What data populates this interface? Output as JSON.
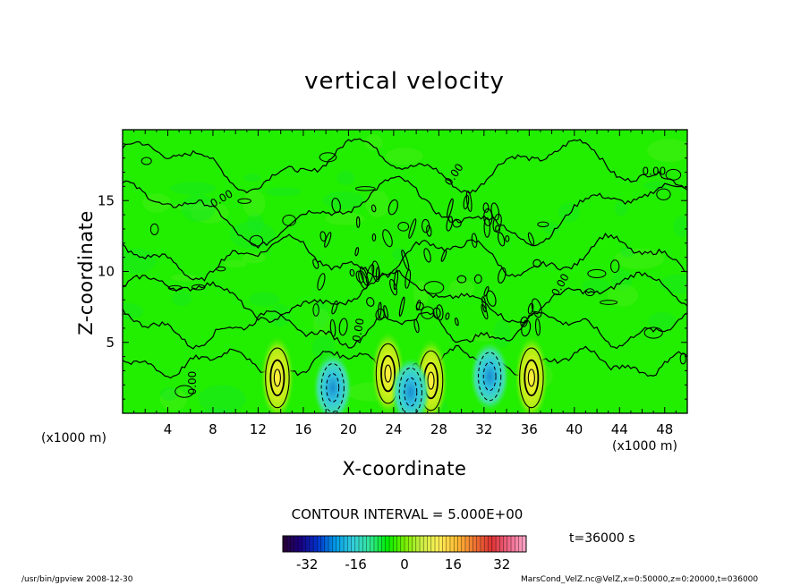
{
  "chart_data": {
    "type": "heatmap",
    "title": "vertical velocity",
    "xlabel": "X-coordinate",
    "ylabel": "Z-coordinate",
    "x_unit_left": "(x1000 m)",
    "x_unit_right": "(x1000 m)",
    "xlim": [
      0,
      50
    ],
    "ylim": [
      0,
      20
    ],
    "x_ticks": [
      4,
      8,
      12,
      16,
      20,
      24,
      28,
      32,
      36,
      40,
      44,
      48
    ],
    "y_ticks": [
      5,
      10,
      15
    ],
    "contour_interval_label": "CONTOUR INTERVAL = 5.000E+00",
    "contour_label": "0.00",
    "time_label": "t=36000 s",
    "colorbar": {
      "range": [
        -40,
        40
      ],
      "ticks": [
        -32,
        -16,
        0,
        16,
        32
      ],
      "colors": [
        "#2a0033",
        "#1a0080",
        "#0033cc",
        "#0099e6",
        "#33ccdd",
        "#33e699",
        "#00ee00",
        "#77ee00",
        "#ccee44",
        "#ffee55",
        "#ffbb33",
        "#ee7733",
        "#dd3333",
        "#ee6688",
        "#ffaacc"
      ]
    },
    "updrafts": [
      {
        "x": 13.7,
        "z": 2.5,
        "peak": 14
      },
      {
        "x": 23.5,
        "z": 2.8,
        "peak": 16
      },
      {
        "x": 27.3,
        "z": 2.3,
        "peak": 13
      },
      {
        "x": 36.2,
        "z": 2.5,
        "peak": 15
      }
    ],
    "downdrafts": [
      {
        "x": 18.6,
        "z": 1.8,
        "peak": -12
      },
      {
        "x": 32.5,
        "z": 2.6,
        "peak": -11
      },
      {
        "x": 25.5,
        "z": 1.5,
        "peak": -5
      }
    ]
  },
  "footer": {
    "left": "/usr/bin/gpview  2008-12-30",
    "right": "MarsCond_VelZ.nc@VelZ,x=0:50000,z=0:20000,t=036000"
  }
}
